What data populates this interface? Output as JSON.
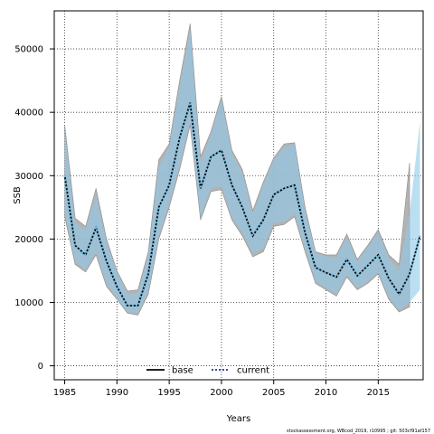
{
  "chart_data": {
    "type": "area",
    "xlabel": "Years",
    "ylabel": "SSB",
    "xlim": [
      1984,
      2019.3
    ],
    "ylim": [
      -2200,
      56000
    ],
    "xticks": [
      1985,
      1990,
      1995,
      2000,
      2005,
      2010,
      2015
    ],
    "yticks": [
      0,
      10000,
      20000,
      30000,
      40000,
      50000
    ],
    "grid": true,
    "legend_position": "bottom-center",
    "x": [
      1985,
      1986,
      1987,
      1988,
      1989,
      1990,
      1991,
      1992,
      1993,
      1994,
      1995,
      1996,
      1997,
      1998,
      1999,
      2000,
      2001,
      2002,
      2003,
      2004,
      2005,
      2006,
      2007,
      2008,
      2009,
      2010,
      2011,
      2012,
      2013,
      2014,
      2015,
      2016,
      2017,
      2018,
      2019
    ],
    "series": [
      {
        "name": "base",
        "line_style": "solid",
        "line_color": "#000000",
        "band_color": "#a6a6a6",
        "upper": [
          38000,
          23300,
          22000,
          28000,
          20000,
          15000,
          11800,
          12000,
          18000,
          32500,
          35000,
          45000,
          54000,
          33000,
          37000,
          42500,
          34000,
          31000,
          24500,
          29000,
          32800,
          35000,
          35200,
          25000,
          18000,
          17500,
          17500,
          20800,
          16800,
          19000,
          21500,
          17500,
          16000,
          32000,
          null
        ],
        "lower": [
          23500,
          16000,
          14800,
          17500,
          12500,
          10500,
          8300,
          8000,
          11300,
          20000,
          25000,
          31000,
          38000,
          23000,
          27500,
          27800,
          23000,
          20500,
          17200,
          18000,
          22000,
          22300,
          23500,
          18000,
          13000,
          12000,
          11000,
          14000,
          12000,
          13000,
          14500,
          10500,
          8500,
          9300,
          null
        ]
      },
      {
        "name": "current",
        "line_style": "dotted",
        "line_color": "#0b3d91",
        "band_color": "#8fc8ea",
        "value": [
          30000,
          19000,
          17500,
          21800,
          16500,
          12500,
          9500,
          9500,
          14500,
          25000,
          28500,
          36000,
          41500,
          28000,
          33000,
          34000,
          28500,
          25000,
          20500,
          23000,
          27000,
          28000,
          28500,
          21000,
          15500,
          14700,
          14000,
          16800,
          14200,
          15800,
          17500,
          13800,
          11300,
          14500,
          20500
        ],
        "upper": [
          37000,
          22500,
          21500,
          27000,
          19500,
          14800,
          11300,
          11500,
          17500,
          31500,
          34500,
          44000,
          53000,
          32000,
          36500,
          42000,
          33500,
          30500,
          24000,
          28500,
          32500,
          34500,
          35000,
          24500,
          17800,
          17300,
          17000,
          20300,
          16500,
          18700,
          21000,
          17000,
          15000,
          24000,
          38500
        ],
        "lower": [
          24000,
          16500,
          15000,
          18000,
          13000,
          10700,
          8500,
          8300,
          11700,
          20500,
          25500,
          31500,
          38500,
          23500,
          28000,
          28300,
          23500,
          21000,
          17700,
          18500,
          22500,
          22700,
          24000,
          18500,
          13300,
          12300,
          11300,
          14300,
          12300,
          13300,
          14800,
          10800,
          8800,
          10000,
          12000
        ]
      }
    ]
  },
  "footer": {
    "attribution": "stockassessment.org, WBcod_2019, r10995 ; git: 503cf91af157"
  }
}
